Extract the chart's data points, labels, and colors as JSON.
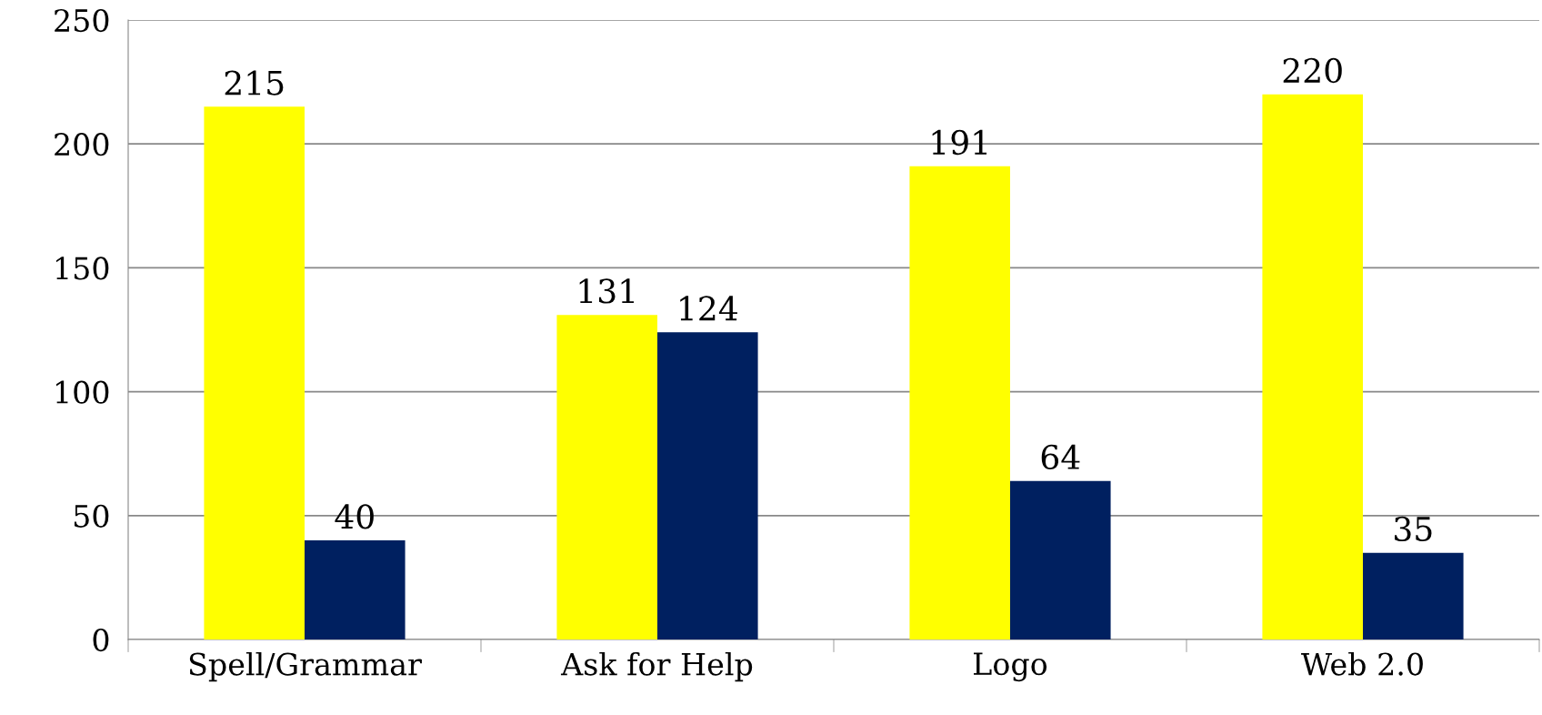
{
  "chart_data": {
    "type": "bar",
    "categories": [
      "Spell/Grammar",
      "Ask for Help",
      "Logo",
      "Web 2.0"
    ],
    "series": [
      {
        "color": "#ffff00",
        "values": [
          215,
          131,
          191,
          220
        ]
      },
      {
        "color": "#002060",
        "values": [
          40,
          124,
          64,
          35
        ]
      }
    ],
    "ylim": [
      0,
      250
    ],
    "yticks": [
      0,
      50,
      100,
      150,
      200,
      250
    ],
    "grid": "y",
    "data_labels": true
  }
}
